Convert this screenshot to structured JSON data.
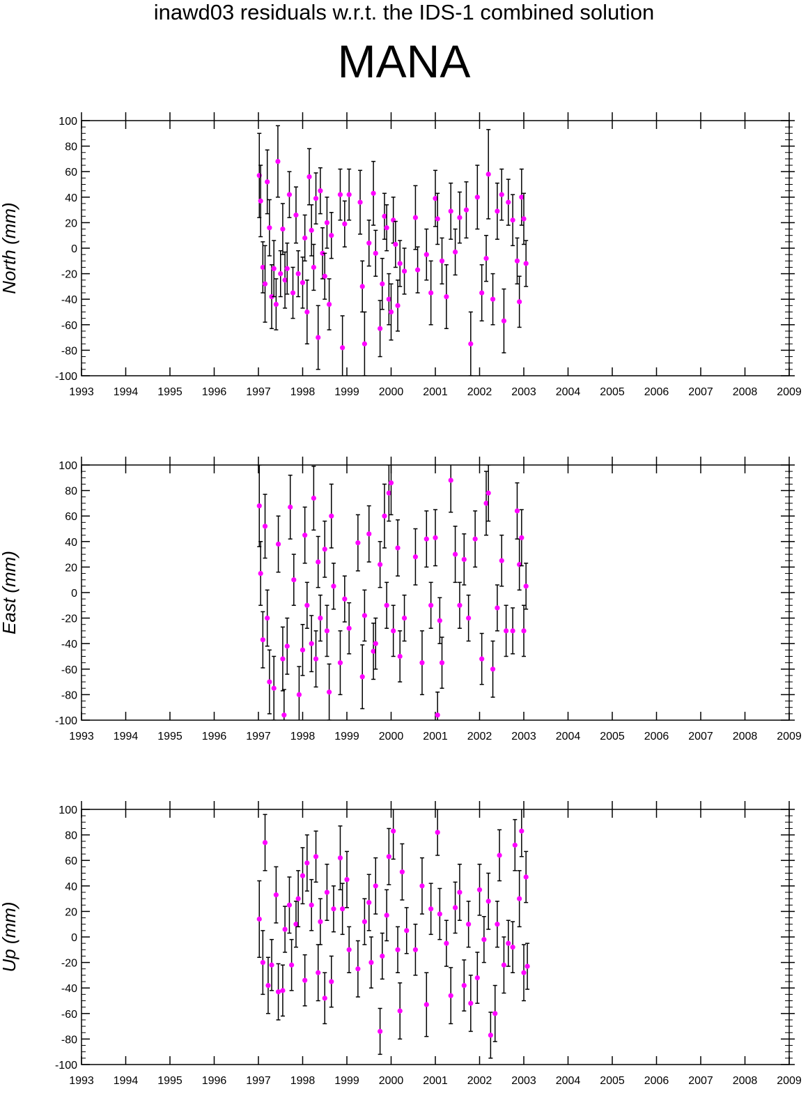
{
  "chart_data": {
    "title": "inawd03 residuals w.r.t. the IDS-1 combined solution",
    "subtitle": "MANA",
    "type": "scatter",
    "x_range": [
      1993,
      2009
    ],
    "x_ticks": [
      "1993",
      "1994",
      "1995",
      "1996",
      "1997",
      "1998",
      "1999",
      "2000",
      "2001",
      "2002",
      "2003",
      "2004",
      "2005",
      "2006",
      "2007",
      "2008",
      "2009"
    ],
    "y_range": [
      -100,
      100
    ],
    "y_ticks": [
      "100",
      "80",
      "60",
      "40",
      "20",
      "0",
      "-20",
      "-40",
      "-60",
      "-80",
      "-100"
    ],
    "colors": {
      "points": "#ff00ff",
      "errorbars": "#000000",
      "axes": "#000000"
    },
    "panels": [
      {
        "ylabel": "North (mm)",
        "points": [
          [
            1997.02,
            57,
            33
          ],
          [
            1997.05,
            37,
            28
          ],
          [
            1997.1,
            -15,
            20
          ],
          [
            1997.15,
            -28,
            30
          ],
          [
            1997.2,
            52,
            25
          ],
          [
            1997.25,
            16,
            22
          ],
          [
            1997.3,
            -38,
            25
          ],
          [
            1997.35,
            -16,
            22
          ],
          [
            1997.4,
            -44,
            20
          ],
          [
            1997.44,
            68,
            28
          ],
          [
            1997.5,
            -20,
            18
          ],
          [
            1997.55,
            15,
            20
          ],
          [
            1997.6,
            -25,
            22
          ],
          [
            1997.65,
            -16,
            20
          ],
          [
            1997.7,
            42,
            18
          ],
          [
            1997.78,
            -35,
            20
          ],
          [
            1997.85,
            26,
            22
          ],
          [
            1997.9,
            -20,
            18
          ],
          [
            1998.0,
            -27,
            20
          ],
          [
            1998.05,
            8,
            18
          ],
          [
            1998.1,
            -50,
            25
          ],
          [
            1998.15,
            56,
            22
          ],
          [
            1998.2,
            14,
            20
          ],
          [
            1998.25,
            -15,
            18
          ],
          [
            1998.3,
            39,
            20
          ],
          [
            1998.35,
            -70,
            25
          ],
          [
            1998.4,
            45,
            18
          ],
          [
            1998.45,
            -4,
            20
          ],
          [
            1998.5,
            -22,
            18
          ],
          [
            1998.55,
            20,
            20
          ],
          [
            1998.6,
            -44,
            20
          ],
          [
            1998.65,
            10,
            18
          ],
          [
            1998.85,
            42,
            20
          ],
          [
            1998.9,
            -78,
            25
          ],
          [
            1998.95,
            19,
            18
          ],
          [
            1999.05,
            42,
            20
          ],
          [
            1999.3,
            36,
            25
          ],
          [
            1999.35,
            -30,
            20
          ],
          [
            1999.4,
            -75,
            25
          ],
          [
            1999.5,
            4,
            18
          ],
          [
            1999.6,
            43,
            25
          ],
          [
            1999.65,
            -4,
            18
          ],
          [
            1999.75,
            -63,
            22
          ],
          [
            1999.8,
            -28,
            20
          ],
          [
            1999.85,
            25,
            18
          ],
          [
            1999.9,
            16,
            18
          ],
          [
            1999.95,
            -40,
            20
          ],
          [
            2000.0,
            -50,
            22
          ],
          [
            2000.05,
            22,
            18
          ],
          [
            2000.1,
            3,
            18
          ],
          [
            2000.15,
            -45,
            20
          ],
          [
            2000.2,
            -12,
            18
          ],
          [
            2000.3,
            -18,
            18
          ],
          [
            2000.55,
            24,
            25
          ],
          [
            2000.6,
            -17,
            18
          ],
          [
            2000.8,
            -5,
            20
          ],
          [
            2000.9,
            -35,
            25
          ],
          [
            2001.0,
            39,
            22
          ],
          [
            2001.05,
            23,
            20
          ],
          [
            2001.15,
            -10,
            18
          ],
          [
            2001.25,
            -38,
            25
          ],
          [
            2001.35,
            29,
            22
          ],
          [
            2001.45,
            -3,
            18
          ],
          [
            2001.55,
            24,
            20
          ],
          [
            2001.7,
            30,
            22
          ],
          [
            2001.8,
            -75,
            25
          ],
          [
            2001.95,
            40,
            25
          ],
          [
            2002.05,
            -35,
            22
          ],
          [
            2002.15,
            -8,
            18
          ],
          [
            2002.2,
            58,
            35
          ],
          [
            2002.3,
            -40,
            20
          ],
          [
            2002.4,
            29,
            22
          ],
          [
            2002.5,
            42,
            20
          ],
          [
            2002.55,
            -57,
            25
          ],
          [
            2002.65,
            36,
            18
          ],
          [
            2002.75,
            22,
            20
          ],
          [
            2002.85,
            -10,
            18
          ],
          [
            2002.9,
            -42,
            20
          ],
          [
            2002.95,
            40,
            22
          ],
          [
            2003.0,
            23,
            20
          ],
          [
            2003.05,
            -12,
            18
          ]
        ]
      },
      {
        "ylabel": "East (mm)",
        "points": [
          [
            1997.02,
            68,
            32
          ],
          [
            1997.05,
            15,
            25
          ],
          [
            1997.1,
            -37,
            22
          ],
          [
            1997.15,
            52,
            25
          ],
          [
            1997.2,
            -20,
            22
          ],
          [
            1997.25,
            -70,
            25
          ],
          [
            1997.35,
            -75,
            25
          ],
          [
            1997.45,
            38,
            22
          ],
          [
            1997.55,
            -52,
            25
          ],
          [
            1997.58,
            -96,
            20
          ],
          [
            1997.65,
            -42,
            22
          ],
          [
            1997.72,
            67,
            25
          ],
          [
            1997.8,
            10,
            20
          ],
          [
            1997.92,
            -80,
            22
          ],
          [
            1998.0,
            -45,
            20
          ],
          [
            1998.05,
            45,
            22
          ],
          [
            1998.1,
            -10,
            18
          ],
          [
            1998.2,
            -40,
            22
          ],
          [
            1998.25,
            74,
            25
          ],
          [
            1998.3,
            -52,
            22
          ],
          [
            1998.35,
            24,
            20
          ],
          [
            1998.4,
            -20,
            18
          ],
          [
            1998.5,
            34,
            22
          ],
          [
            1998.55,
            -30,
            20
          ],
          [
            1998.6,
            -78,
            22
          ],
          [
            1998.65,
            60,
            25
          ],
          [
            1998.7,
            5,
            18
          ],
          [
            1998.85,
            -55,
            25
          ],
          [
            1998.95,
            -5,
            18
          ],
          [
            1999.05,
            -28,
            20
          ],
          [
            1999.25,
            39,
            22
          ],
          [
            1999.35,
            -66,
            25
          ],
          [
            1999.4,
            -18,
            20
          ],
          [
            1999.5,
            46,
            22
          ],
          [
            1999.6,
            -46,
            22
          ],
          [
            1999.65,
            -40,
            20
          ],
          [
            1999.75,
            22,
            18
          ],
          [
            1999.85,
            60,
            25
          ],
          [
            1999.9,
            -10,
            18
          ],
          [
            1999.95,
            78,
            22
          ],
          [
            2000.0,
            86,
            25
          ],
          [
            2000.05,
            -30,
            20
          ],
          [
            2000.15,
            35,
            22
          ],
          [
            2000.2,
            -50,
            20
          ],
          [
            2000.3,
            -20,
            18
          ],
          [
            2000.55,
            28,
            22
          ],
          [
            2000.7,
            -55,
            25
          ],
          [
            2000.8,
            42,
            22
          ],
          [
            2000.9,
            -10,
            18
          ],
          [
            2001.0,
            43,
            22
          ],
          [
            2001.05,
            -96,
            18
          ],
          [
            2001.1,
            -22,
            18
          ],
          [
            2001.15,
            -55,
            20
          ],
          [
            2001.35,
            88,
            25
          ],
          [
            2001.45,
            30,
            22
          ],
          [
            2001.55,
            -10,
            18
          ],
          [
            2001.65,
            26,
            20
          ],
          [
            2001.75,
            -20,
            18
          ],
          [
            2001.9,
            42,
            22
          ],
          [
            2002.05,
            -52,
            20
          ],
          [
            2002.15,
            70,
            25
          ],
          [
            2002.2,
            78,
            22
          ],
          [
            2002.3,
            -60,
            22
          ],
          [
            2002.4,
            -12,
            18
          ],
          [
            2002.5,
            25,
            20
          ],
          [
            2002.6,
            -30,
            20
          ],
          [
            2002.75,
            -30,
            18
          ],
          [
            2002.85,
            64,
            22
          ],
          [
            2002.9,
            22,
            20
          ],
          [
            2002.95,
            43,
            22
          ],
          [
            2003.0,
            -30,
            20
          ],
          [
            2003.05,
            5,
            18
          ]
        ]
      },
      {
        "ylabel": "Up (mm)",
        "points": [
          [
            1997.02,
            14,
            30
          ],
          [
            1997.1,
            -20,
            25
          ],
          [
            1997.15,
            74,
            22
          ],
          [
            1997.22,
            -38,
            22
          ],
          [
            1997.3,
            -22,
            20
          ],
          [
            1997.4,
            33,
            22
          ],
          [
            1997.45,
            -43,
            22
          ],
          [
            1997.55,
            -42,
            20
          ],
          [
            1997.6,
            6,
            18
          ],
          [
            1997.7,
            25,
            22
          ],
          [
            1997.75,
            -22,
            20
          ],
          [
            1997.85,
            10,
            18
          ],
          [
            1997.9,
            30,
            22
          ],
          [
            1998.0,
            48,
            22
          ],
          [
            1998.05,
            -34,
            20
          ],
          [
            1998.1,
            58,
            22
          ],
          [
            1998.2,
            25,
            20
          ],
          [
            1998.3,
            63,
            20
          ],
          [
            1998.35,
            -28,
            22
          ],
          [
            1998.4,
            12,
            18
          ],
          [
            1998.5,
            -48,
            20
          ],
          [
            1998.55,
            35,
            22
          ],
          [
            1998.65,
            -35,
            20
          ],
          [
            1998.7,
            22,
            18
          ],
          [
            1998.85,
            62,
            25
          ],
          [
            1998.9,
            22,
            20
          ],
          [
            1999.0,
            45,
            22
          ],
          [
            1999.05,
            -10,
            18
          ],
          [
            1999.25,
            -25,
            22
          ],
          [
            1999.4,
            12,
            18
          ],
          [
            1999.5,
            27,
            22
          ],
          [
            1999.55,
            -20,
            20
          ],
          [
            1999.65,
            40,
            22
          ],
          [
            1999.75,
            -74,
            18
          ],
          [
            1999.8,
            -15,
            18
          ],
          [
            1999.9,
            17,
            20
          ],
          [
            1999.95,
            63,
            22
          ],
          [
            2000.05,
            83,
            22
          ],
          [
            2000.15,
            -10,
            18
          ],
          [
            2000.2,
            -58,
            22
          ],
          [
            2000.25,
            51,
            22
          ],
          [
            2000.35,
            5,
            18
          ],
          [
            2000.55,
            -10,
            20
          ],
          [
            2000.7,
            40,
            22
          ],
          [
            2000.8,
            -53,
            25
          ],
          [
            2000.9,
            22,
            20
          ],
          [
            2001.05,
            82,
            18
          ],
          [
            2001.1,
            18,
            20
          ],
          [
            2001.25,
            -5,
            18
          ],
          [
            2001.35,
            -46,
            22
          ],
          [
            2001.45,
            23,
            20
          ],
          [
            2001.55,
            35,
            22
          ],
          [
            2001.65,
            -38,
            20
          ],
          [
            2001.75,
            10,
            18
          ],
          [
            2001.8,
            -52,
            22
          ],
          [
            2001.95,
            -32,
            20
          ],
          [
            2002.0,
            37,
            20
          ],
          [
            2002.1,
            -2,
            18
          ],
          [
            2002.2,
            28,
            22
          ],
          [
            2002.25,
            -77,
            18
          ],
          [
            2002.35,
            -60,
            22
          ],
          [
            2002.4,
            10,
            18
          ],
          [
            2002.45,
            64,
            20
          ],
          [
            2002.55,
            -22,
            22
          ],
          [
            2002.65,
            -5,
            18
          ],
          [
            2002.75,
            -8,
            20
          ],
          [
            2002.8,
            72,
            20
          ],
          [
            2002.9,
            30,
            22
          ],
          [
            2002.95,
            83,
            20
          ],
          [
            2003.0,
            -28,
            22
          ],
          [
            2003.05,
            47,
            20
          ],
          [
            2003.08,
            -23,
            18
          ]
        ]
      }
    ]
  }
}
